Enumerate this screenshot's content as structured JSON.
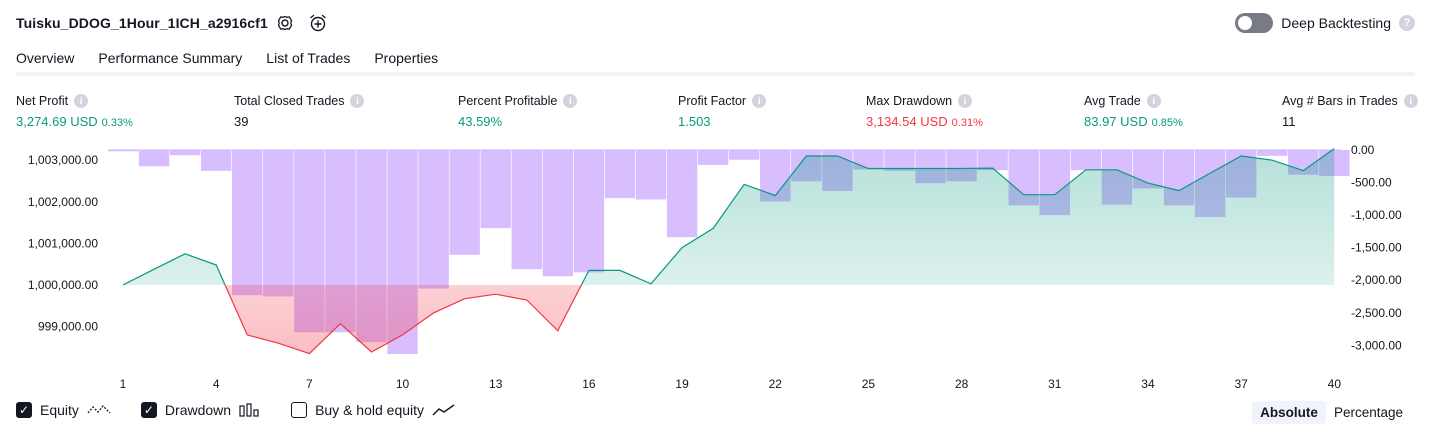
{
  "header": {
    "strategy_title": "Tuisku_DDOG_1Hour_1ICH_a2916cf1",
    "settings_icon": "gear-icon",
    "add_alert_icon": "alarm-add-icon",
    "deep_backtesting_label": "Deep Backtesting",
    "deep_backtesting_enabled": false,
    "help_glyph": "?"
  },
  "tabs": [
    {
      "label": "Overview",
      "active": true
    },
    {
      "label": "Performance Summary",
      "active": false
    },
    {
      "label": "List of Trades",
      "active": false
    },
    {
      "label": "Properties",
      "active": false
    }
  ],
  "metrics": [
    {
      "label": "Net Profit",
      "value": "3,274.69 USD",
      "pct": "0.33%",
      "color": "#089981"
    },
    {
      "label": "Total Closed Trades",
      "value": "39",
      "pct": "",
      "color": "#131722"
    },
    {
      "label": "Percent Profitable",
      "value": "43.59%",
      "pct": "",
      "color": "#089981"
    },
    {
      "label": "Profit Factor",
      "value": "1.503",
      "pct": "",
      "color": "#089981"
    },
    {
      "label": "Max Drawdown",
      "value": "3,134.54 USD",
      "pct": "0.31%",
      "color": "#f23645"
    },
    {
      "label": "Avg Trade",
      "value": "83.97 USD",
      "pct": "0.85%",
      "color": "#089981"
    },
    {
      "label": "Avg # Bars in Trades",
      "value": "11",
      "pct": "",
      "color": "#131722"
    }
  ],
  "chart_data": {
    "type": "line",
    "equity_baseline": 1000000,
    "left_axis": {
      "ticks": [
        "1,003,000.00",
        "1,002,000.00",
        "1,001,000.00",
        "1,000,000.00",
        "999,000.00"
      ],
      "values": [
        1003000,
        1002000,
        1001000,
        1000000,
        999000
      ]
    },
    "right_axis": {
      "ticks": [
        "0.00",
        "-500.00",
        "-1,000.00",
        "-1,500.00",
        "-2,000.00",
        "-2,500.00",
        "-3,000.00"
      ],
      "values": [
        0,
        -500,
        -1000,
        -1500,
        -2000,
        -2500,
        -3000
      ]
    },
    "x_ticks": [
      "1",
      "4",
      "7",
      "10",
      "13",
      "16",
      "19",
      "22",
      "25",
      "28",
      "31",
      "34",
      "37",
      "40"
    ],
    "x_values": [
      1,
      4,
      7,
      10,
      13,
      16,
      19,
      22,
      25,
      28,
      31,
      34,
      37,
      40
    ],
    "equity": [
      [
        1,
        1000000
      ],
      [
        2,
        1000380
      ],
      [
        3,
        1000750
      ],
      [
        4,
        1000480
      ],
      [
        5,
        998800
      ],
      [
        6,
        998600
      ],
      [
        7,
        998350
      ],
      [
        8,
        999070
      ],
      [
        9,
        998390
      ],
      [
        10,
        998800
      ],
      [
        11,
        999330
      ],
      [
        12,
        999670
      ],
      [
        13,
        999780
      ],
      [
        14,
        999640
      ],
      [
        15,
        998900
      ],
      [
        16,
        1000350
      ],
      [
        17,
        1000350
      ],
      [
        18,
        1000030
      ],
      [
        19,
        1000900
      ],
      [
        20,
        1001360
      ],
      [
        21,
        1002420
      ],
      [
        22,
        1002150
      ],
      [
        23,
        1003100
      ],
      [
        24,
        1003100
      ],
      [
        25,
        1002800
      ],
      [
        26,
        1002800
      ],
      [
        27,
        1002800
      ],
      [
        28,
        1002800
      ],
      [
        29,
        1002810
      ],
      [
        30,
        1002170
      ],
      [
        31,
        1002170
      ],
      [
        32,
        1002770
      ],
      [
        33,
        1002770
      ],
      [
        34,
        1002450
      ],
      [
        35,
        1002270
      ],
      [
        36,
        1002690
      ],
      [
        37,
        1003100
      ],
      [
        38,
        1003000
      ],
      [
        39,
        1002750
      ],
      [
        40,
        1003280
      ]
    ],
    "drawdown": [
      [
        1,
        -20
      ],
      [
        2,
        -250
      ],
      [
        3,
        -80
      ],
      [
        4,
        -320
      ],
      [
        5,
        -2230
      ],
      [
        6,
        -2250
      ],
      [
        7,
        -2800
      ],
      [
        8,
        -2800
      ],
      [
        9,
        -2950
      ],
      [
        10,
        -3134.54
      ],
      [
        11,
        -2130
      ],
      [
        12,
        -1610
      ],
      [
        13,
        -1200
      ],
      [
        14,
        -1830
      ],
      [
        15,
        -1940
      ],
      [
        16,
        -1880
      ],
      [
        17,
        -740
      ],
      [
        18,
        -760
      ],
      [
        19,
        -1340
      ],
      [
        20,
        -230
      ],
      [
        21,
        -150
      ],
      [
        22,
        -790
      ],
      [
        23,
        -480
      ],
      [
        24,
        -630
      ],
      [
        25,
        -300
      ],
      [
        26,
        -320
      ],
      [
        27,
        -510
      ],
      [
        28,
        -480
      ],
      [
        29,
        -310
      ],
      [
        30,
        -850
      ],
      [
        31,
        -1000
      ],
      [
        32,
        -310
      ],
      [
        33,
        -840
      ],
      [
        34,
        -590
      ],
      [
        35,
        -850
      ],
      [
        36,
        -1030
      ],
      [
        37,
        -730
      ],
      [
        38,
        -90
      ],
      [
        39,
        -380
      ],
      [
        40,
        -400
      ]
    ],
    "colors": {
      "equity_up": "#089981",
      "equity_down": "#f23645",
      "drawdown_bar": "#d1b3ff",
      "grid": "#e0e3eb"
    }
  },
  "legend": [
    {
      "label": "Equity",
      "checked": true,
      "icon": "equity-line-icon"
    },
    {
      "label": "Drawdown",
      "checked": true,
      "icon": "drawdown-bars-icon"
    },
    {
      "label": "Buy & hold equity",
      "checked": false,
      "icon": "buy-hold-line-icon"
    }
  ],
  "scale_toggle": {
    "options": [
      "Absolute",
      "Percentage"
    ],
    "selected": "Absolute"
  }
}
